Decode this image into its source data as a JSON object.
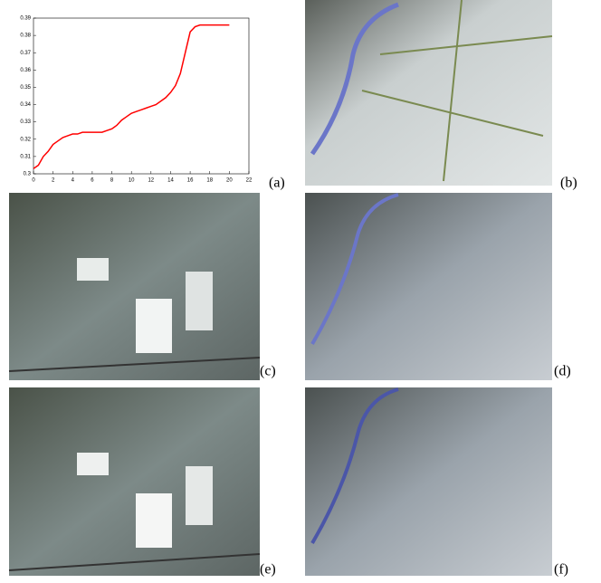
{
  "chart_data": {
    "type": "line",
    "x": [
      0,
      0.5,
      1,
      1.5,
      2,
      2.5,
      3,
      3.5,
      4,
      4.5,
      5,
      5.5,
      6,
      6.5,
      7,
      7.5,
      8,
      8.5,
      9,
      9.5,
      10,
      10.5,
      11,
      11.5,
      12,
      12.5,
      13,
      13.5,
      14,
      14.5,
      15,
      15.5,
      16,
      16.5,
      17,
      17.5,
      18,
      18.5,
      19,
      19.5,
      20
    ],
    "series": [
      {
        "color": "#ff0000",
        "values": [
          0.303,
          0.305,
          0.31,
          0.313,
          0.317,
          0.319,
          0.321,
          0.322,
          0.323,
          0.323,
          0.324,
          0.324,
          0.324,
          0.324,
          0.324,
          0.325,
          0.326,
          0.328,
          0.331,
          0.333,
          0.335,
          0.336,
          0.337,
          0.338,
          0.339,
          0.34,
          0.342,
          0.344,
          0.347,
          0.351,
          0.358,
          0.37,
          0.382,
          0.385,
          0.386,
          0.386,
          0.386,
          0.386,
          0.386,
          0.386,
          0.386
        ]
      }
    ],
    "xlim": [
      0,
      22
    ],
    "xticks": [
      0,
      2,
      4,
      6,
      8,
      10,
      12,
      14,
      16,
      18,
      20,
      22
    ],
    "ylim": [
      0.3,
      0.39
    ],
    "yticks": [
      0.3,
      0.31,
      0.32,
      0.33,
      0.34,
      0.35,
      0.36,
      0.37,
      0.38,
      0.39
    ]
  },
  "panels": [
    "(a)",
    "(b)",
    "(c)",
    "(d)",
    "(e)",
    "(f)"
  ]
}
